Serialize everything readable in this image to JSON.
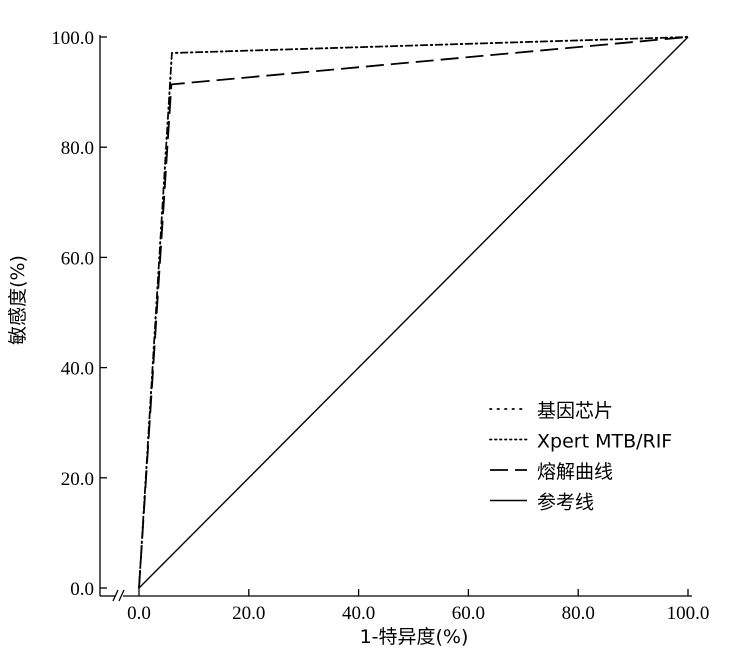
{
  "chart_data": {
    "type": "line",
    "xlabel": "1-特异度(%)",
    "ylabel": "敏感度(%)",
    "xlim": [
      0,
      100
    ],
    "ylim": [
      0,
      100
    ],
    "x_ticks": [
      "0.0",
      "20.0",
      "40.0",
      "60.0",
      "80.0",
      "100.0"
    ],
    "y_ticks": [
      "0.0",
      "20.0",
      "40.0",
      "60.0",
      "80.0",
      "100.0"
    ],
    "grid": false,
    "legend_position": "bottom-right",
    "series": [
      {
        "name": "基因芯片",
        "style": "dotted-sparse",
        "points": [
          [
            0,
            0
          ],
          [
            6,
            97.1
          ],
          [
            100,
            100
          ]
        ]
      },
      {
        "name": "Xpert MTB/RIF",
        "style": "dotted",
        "points": [
          [
            0,
            0
          ],
          [
            6,
            97.1
          ],
          [
            100,
            100
          ]
        ]
      },
      {
        "name": "熔解曲线",
        "style": "dashed",
        "points": [
          [
            0,
            0
          ],
          [
            5.9,
            91.4
          ],
          [
            100,
            100
          ]
        ]
      },
      {
        "name": "参考线",
        "style": "solid",
        "points": [
          [
            0,
            0
          ],
          [
            100,
            100
          ]
        ]
      }
    ]
  }
}
